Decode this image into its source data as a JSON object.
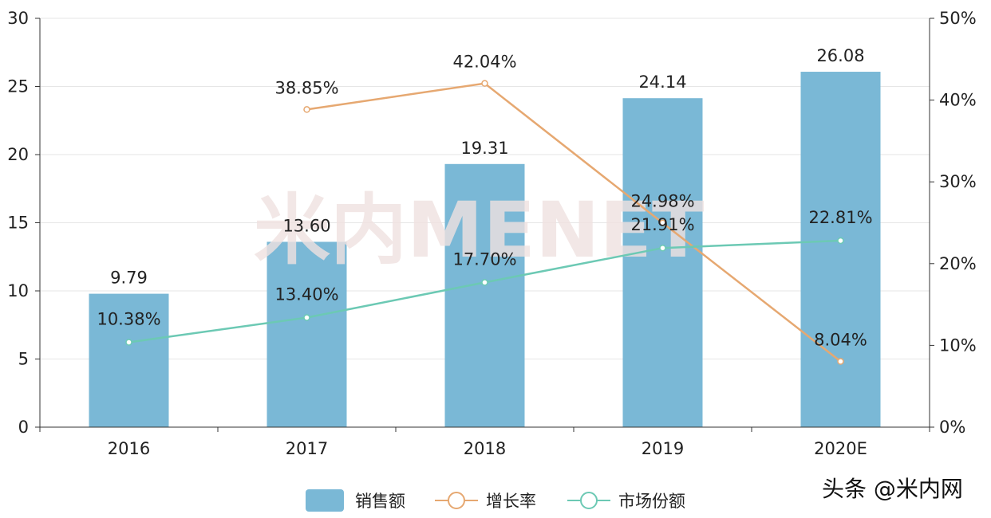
{
  "chart_data": {
    "type": "bar",
    "categories": [
      "2016",
      "2017",
      "2018",
      "2019",
      "2020E"
    ],
    "y_left": {
      "ylim": [
        0,
        30
      ],
      "ticks": [
        "0",
        "5",
        "10",
        "15",
        "20",
        "25",
        "30"
      ]
    },
    "y_right": {
      "ylim": [
        0,
        50
      ],
      "ticks": [
        "0%",
        "10%",
        "20%",
        "30%",
        "40%",
        "50%"
      ]
    },
    "series": [
      {
        "name": "销售额",
        "type": "bar",
        "axis": "left",
        "values": [
          9.79,
          13.6,
          19.31,
          24.14,
          26.08
        ],
        "labels": [
          "9.79",
          "13.60",
          "19.31",
          "24.14",
          "26.08"
        ],
        "color": "#7ab8d6"
      },
      {
        "name": "增长率",
        "type": "line",
        "axis": "right",
        "values": [
          null,
          38.85,
          42.04,
          24.98,
          8.04
        ],
        "labels": [
          "",
          "38.85%",
          "42.04%",
          "24.98%",
          "8.04%"
        ],
        "color": "#e6a871"
      },
      {
        "name": "市场份额",
        "type": "line",
        "axis": "right",
        "values": [
          10.38,
          13.4,
          17.7,
          21.91,
          22.81
        ],
        "labels": [
          "10.38%",
          "13.40%",
          "17.70%",
          "21.91%",
          "22.81%"
        ],
        "color": "#6cc9b4"
      }
    ],
    "legend_position": "bottom",
    "grid": true
  },
  "watermark": {
    "text": "米内MENET",
    "color": "#f0e6e6"
  },
  "credit": {
    "text": "头条 @米内网"
  }
}
